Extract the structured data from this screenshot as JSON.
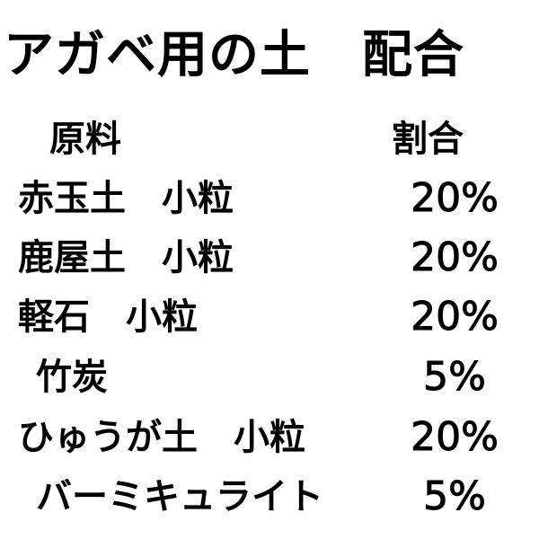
{
  "title": "アガベ用の土　配合",
  "header": {
    "material": "原料",
    "ratio": "割合"
  },
  "rows": [
    {
      "material": "赤玉土　小粒",
      "ratio": "20%"
    },
    {
      "material": "鹿屋土　小粒",
      "ratio": "20%"
    },
    {
      "material": "軽石　小粒",
      "ratio": "20%"
    },
    {
      "material": "竹炭",
      "ratio": "5%"
    },
    {
      "material": "ひゅうが土　小粒",
      "ratio": "20%"
    },
    {
      "material": "バーミキュライト",
      "ratio": "5%"
    }
  ]
}
